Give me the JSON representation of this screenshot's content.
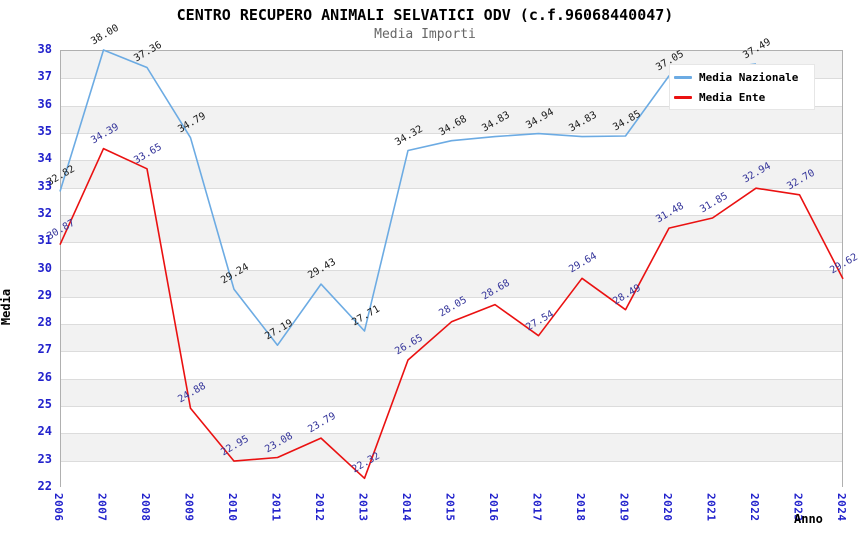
{
  "header": {
    "title": "CENTRO RECUPERO ANIMALI SELVATICI ODV (c.f.96068440047)",
    "subtitle": "Media Importi"
  },
  "chart_data": {
    "type": "line",
    "x": [
      2006,
      2007,
      2008,
      2009,
      2010,
      2011,
      2012,
      2013,
      2014,
      2015,
      2016,
      2017,
      2018,
      2019,
      2020,
      2021,
      2022,
      2023,
      2024
    ],
    "series": [
      {
        "name": "Media Nazionale",
        "color": "#6cabe3",
        "label_color": "#1a1a1a",
        "values": [
          32.82,
          38.0,
          37.36,
          34.79,
          29.24,
          27.19,
          29.43,
          27.71,
          34.32,
          34.68,
          34.83,
          34.94,
          34.83,
          34.85,
          37.05,
          null,
          37.49,
          null,
          null
        ]
      },
      {
        "name": "Media Ente",
        "color": "#ea1111",
        "label_color": "#333399",
        "values": [
          30.87,
          34.39,
          33.65,
          24.88,
          22.95,
          23.08,
          23.79,
          22.32,
          26.65,
          28.05,
          28.68,
          27.54,
          29.64,
          28.49,
          31.48,
          31.85,
          32.94,
          32.7,
          29.62
        ]
      }
    ],
    "xlabel": "Anno",
    "ylabel": "Media",
    "ylim": [
      22,
      38
    ],
    "ytick_step": 1,
    "grid": "horizontal-only",
    "banding": "alternating gray bands between integer gridlines",
    "legend_position": "top-right",
    "label_format": "two-decimals, rotated -30deg above each point"
  },
  "colors": {
    "band_gray": "#f2f2f2",
    "band_white": "#ffffff",
    "gridline": "#dcdcdc",
    "plot_border": "#b0b0b0",
    "tick_label_blue": "#2222cc",
    "title_black": "#000000",
    "subtitle_gray": "#666666"
  }
}
